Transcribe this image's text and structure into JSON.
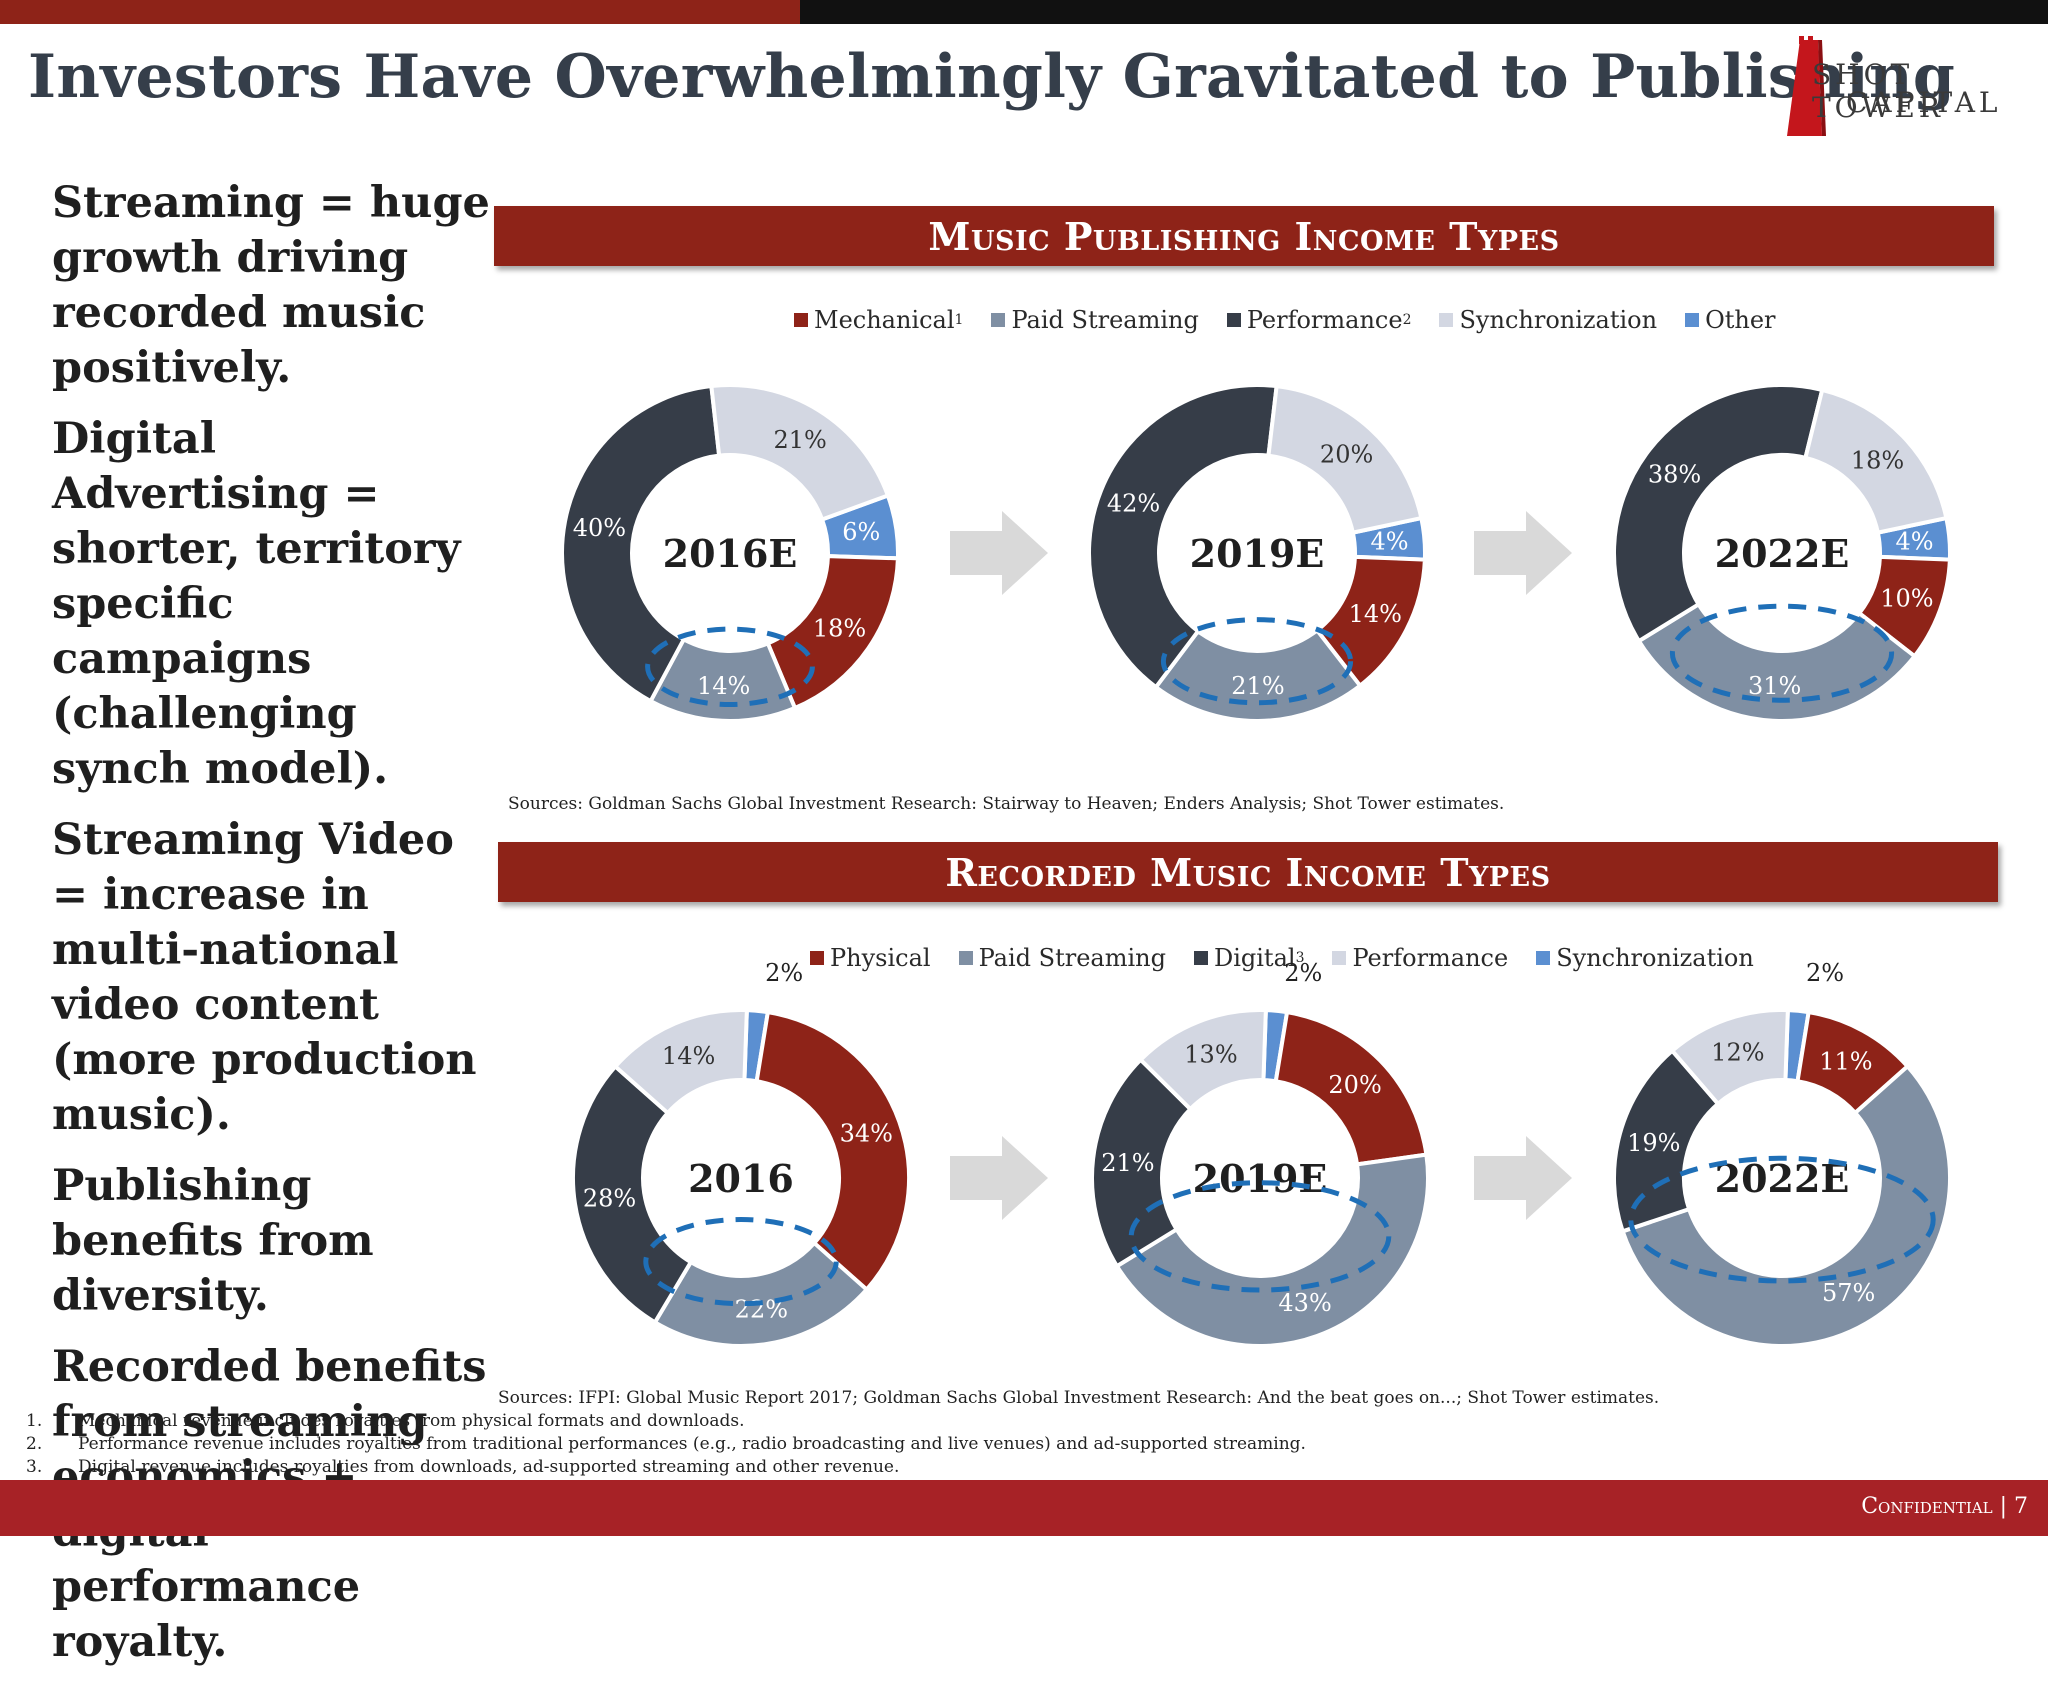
{
  "slide": {
    "title": "Investors Have Overwhelmingly Gravitated to Publishing",
    "logo": {
      "line1": "SHOT TOWER",
      "line2": "CAPITAL"
    },
    "bullets": [
      "Streaming = huge growth driving recorded music positively.",
      "Digital Advertising = shorter, territory specific campaigns (challenging synch model).",
      "Streaming Video = increase in multi-national video content (more production music).",
      "Publishing benefits from diversity.",
      "Recorded benefits from streaming economics + digital performance royalty."
    ],
    "footnotes": [
      {
        "num": "1.",
        "text": "Mechanical revenue includes royalties from physical formats and downloads."
      },
      {
        "num": "2.",
        "text": "Performance revenue includes royalties from traditional performances (e.g., radio broadcasting and live venues) and ad-supported streaming."
      },
      {
        "num": "3.",
        "text": "Digital revenue includes royalties from downloads, ad-supported streaming and other revenue."
      }
    ],
    "confidential": "Confidential | 7"
  },
  "chart_data": [
    {
      "type": "pie",
      "title": "Music Publishing Income Types",
      "source": "Sources: Goldman Sachs Global Investment Research: Stairway to Heaven; Enders Analysis; Shot Tower estimates.",
      "legend": [
        {
          "name": "Mechanical",
          "sup": "1",
          "color": "#8e2318"
        },
        {
          "name": "Paid Streaming",
          "sup": "",
          "color": "#7f8fa3"
        },
        {
          "name": "Performance",
          "sup": "2",
          "color": "#363d48"
        },
        {
          "name": "Synchronization",
          "sup": "",
          "color": "#d3d7e2"
        },
        {
          "name": "Other",
          "sup": "",
          "color": "#5b8fd1"
        }
      ],
      "highlight": "Paid Streaming",
      "donuts": [
        {
          "label": "2016E",
          "values": {
            "Mechanical": 18,
            "Paid Streaming": 14,
            "Performance": 40,
            "Synchronization": 21,
            "Other": 6
          }
        },
        {
          "label": "2019E",
          "values": {
            "Mechanical": 14,
            "Paid Streaming": 21,
            "Performance": 42,
            "Synchronization": 20,
            "Other": 4
          }
        },
        {
          "label": "2022E",
          "values": {
            "Mechanical": 10,
            "Paid Streaming": 31,
            "Performance": 38,
            "Synchronization": 18,
            "Other": 4
          }
        }
      ]
    },
    {
      "type": "pie",
      "title": "Recorded Music Income Types",
      "source": "Sources: IFPI: Global Music Report 2017; Goldman Sachs Global Investment Research: And the beat goes on...; Shot Tower estimates.",
      "legend": [
        {
          "name": "Physical",
          "sup": "",
          "color": "#8e2318"
        },
        {
          "name": "Paid Streaming",
          "sup": "",
          "color": "#7f8fa3"
        },
        {
          "name": "Digital",
          "sup": "3",
          "color": "#363d48"
        },
        {
          "name": "Performance",
          "sup": "",
          "color": "#d3d7e2"
        },
        {
          "name": "Synchronization",
          "sup": "",
          "color": "#5b8fd1"
        }
      ],
      "highlight": "Paid Streaming",
      "donuts": [
        {
          "label": "2016",
          "values": {
            "Physical": 34,
            "Paid Streaming": 22,
            "Digital": 28,
            "Performance": 14,
            "Synchronization": 2
          }
        },
        {
          "label": "2019E",
          "values": {
            "Physical": 20,
            "Paid Streaming": 43,
            "Digital": 21,
            "Performance": 13,
            "Synchronization": 2
          }
        },
        {
          "label": "2022E",
          "values": {
            "Physical": 11,
            "Paid Streaming": 57,
            "Digital": 19,
            "Performance": 12,
            "Synchronization": 2
          }
        }
      ]
    }
  ]
}
